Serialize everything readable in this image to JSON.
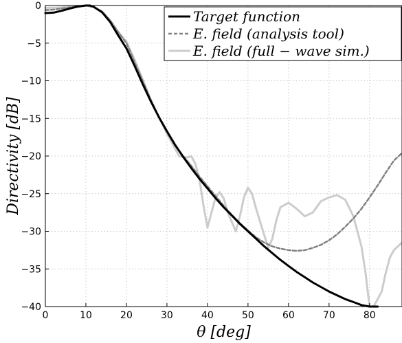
{
  "chart_data": {
    "type": "line",
    "xlabel": "θ [deg]",
    "ylabel": "Directivity [dB]",
    "xlim": [
      0,
      88
    ],
    "ylim": [
      -40,
      0
    ],
    "xticks": [
      0,
      10,
      20,
      30,
      40,
      50,
      60,
      70,
      80
    ],
    "yticks": [
      0,
      -5,
      -10,
      -15,
      -20,
      -25,
      -30,
      -35,
      -40
    ],
    "grid": true,
    "legend_position": "top-right",
    "series": [
      {
        "name": "Target function",
        "color": "#000000",
        "style": "solid",
        "x": [
          0,
          2,
          4,
          6,
          8,
          10,
          11,
          12,
          14,
          16,
          18,
          20,
          22,
          24,
          26,
          28,
          30,
          32,
          34,
          36,
          38,
          40,
          42,
          44,
          46,
          48,
          50,
          52,
          54,
          56,
          58,
          60,
          62,
          64,
          66,
          68,
          70,
          72,
          74,
          76,
          78,
          80,
          82
        ],
        "y": [
          -1.0,
          -0.95,
          -0.7,
          -0.4,
          -0.15,
          0,
          0,
          -0.2,
          -0.9,
          -2.2,
          -4.0,
          -5.7,
          -8.0,
          -10.4,
          -12.7,
          -14.8,
          -16.7,
          -18.5,
          -20.1,
          -21.6,
          -23.0,
          -24.3,
          -25.6,
          -26.8,
          -27.9,
          -29.0,
          -30.0,
          -31.0,
          -32.0,
          -32.9,
          -33.8,
          -34.6,
          -35.4,
          -36.1,
          -36.8,
          -37.4,
          -38.0,
          -38.5,
          -39.0,
          -39.4,
          -39.8,
          -40.0,
          -40.0
        ]
      },
      {
        "name": "E. field (analysis tool)",
        "color": "#808080",
        "style": "dashed",
        "x": [
          0,
          2,
          4,
          6,
          8,
          10,
          12,
          14,
          16,
          18,
          20,
          22,
          24,
          26,
          28,
          30,
          32,
          34,
          36,
          38,
          40,
          42,
          44,
          46,
          48,
          50,
          52,
          54,
          56,
          58,
          60,
          62,
          64,
          66,
          68,
          70,
          72,
          74,
          76,
          78,
          80,
          82,
          84,
          86,
          88
        ],
        "y": [
          -0.6,
          -0.55,
          -0.4,
          -0.25,
          -0.1,
          0,
          -0.2,
          -0.8,
          -2.0,
          -3.6,
          -5.0,
          -7.5,
          -10.0,
          -12.5,
          -14.8,
          -16.8,
          -18.6,
          -20.0,
          -21.3,
          -22.7,
          -24.0,
          -25.3,
          -26.6,
          -27.8,
          -28.9,
          -29.9,
          -30.8,
          -31.5,
          -32.0,
          -32.3,
          -32.5,
          -32.6,
          -32.5,
          -32.2,
          -31.8,
          -31.2,
          -30.4,
          -29.4,
          -28.3,
          -27.0,
          -25.5,
          -23.9,
          -22.2,
          -20.6,
          -19.6
        ]
      },
      {
        "name": "E. field (full − wave sim.)",
        "color": "#cccccc",
        "style": "solid",
        "x": [
          0,
          2,
          4,
          6,
          8,
          10,
          12,
          14,
          16,
          18,
          20,
          22,
          24,
          26,
          28,
          30,
          32,
          33,
          35,
          36,
          37,
          38,
          39,
          40,
          41,
          42,
          43,
          44,
          45,
          47,
          48,
          49,
          50,
          51,
          52,
          54,
          55,
          56,
          57,
          58,
          60,
          62,
          64,
          66,
          68,
          70,
          72,
          74,
          76,
          78,
          79,
          80,
          81,
          82,
          83,
          84,
          85,
          86,
          88
        ],
        "y": [
          -0.3,
          -0.3,
          -0.25,
          -0.15,
          -0.05,
          0,
          -0.2,
          -0.8,
          -2.0,
          -3.5,
          -4.8,
          -7.2,
          -9.8,
          -12.5,
          -14.8,
          -17.0,
          -19.0,
          -20.0,
          -20.2,
          -20.0,
          -21.0,
          -23.0,
          -26.5,
          -29.5,
          -27.5,
          -25.5,
          -24.8,
          -25.6,
          -27.5,
          -30.0,
          -28.0,
          -25.5,
          -24.2,
          -25.0,
          -27.0,
          -30.5,
          -32.2,
          -31.0,
          -28.5,
          -26.8,
          -26.2,
          -27.0,
          -28.0,
          -27.5,
          -26.0,
          -25.5,
          -25.2,
          -25.8,
          -28.0,
          -32.0,
          -35.5,
          -40.0,
          -40.0,
          -39.0,
          -38.0,
          -35.5,
          -33.5,
          -32.5,
          -31.5
        ]
      }
    ]
  }
}
